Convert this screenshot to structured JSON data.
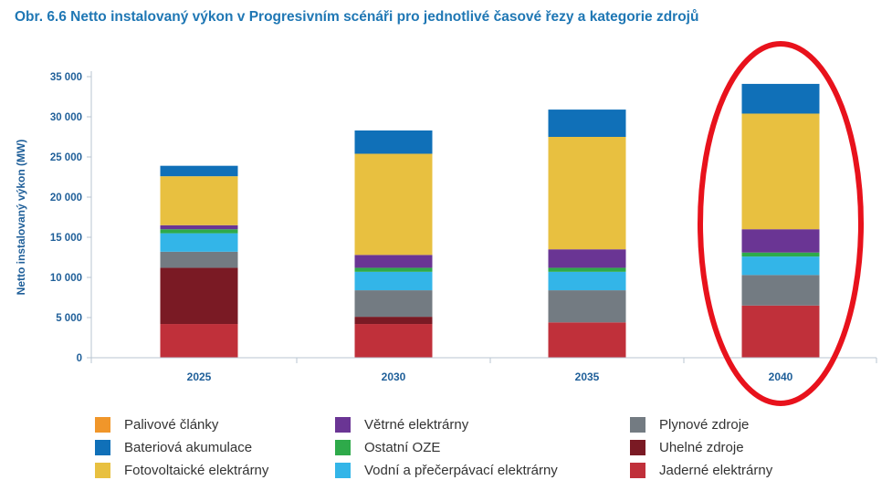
{
  "chart_data": {
    "type": "bar",
    "stacked": true,
    "title": "Obr. 6.6 Netto instalovaný výkon v Progresivním scénáři pro jednotlivé časové řezy a kategorie zdrojů",
    "xlabel": "",
    "ylabel": "Netto instalovaný výkon (MW)",
    "ylim": [
      0,
      35000
    ],
    "yticks": [
      0,
      5000,
      10000,
      15000,
      20000,
      25000,
      30000,
      35000
    ],
    "ytick_labels": [
      "0",
      "5 000",
      "10 000",
      "15 000",
      "20 000",
      "25 000",
      "30 000",
      "35 000"
    ],
    "categories": [
      "2025",
      "2030",
      "2035",
      "2040"
    ],
    "grid": false,
    "series": [
      {
        "name": "Jaderné elektrárny",
        "color": "#c0303a",
        "values": [
          4200,
          4200,
          4400,
          6500
        ]
      },
      {
        "name": "Uhelné zdroje",
        "color": "#7a1a24",
        "values": [
          7000,
          900,
          0,
          0
        ]
      },
      {
        "name": "Plynové zdroje",
        "color": "#737b82",
        "values": [
          2000,
          3300,
          4000,
          3800
        ]
      },
      {
        "name": "Vodní a přečerpávací elektrárny",
        "color": "#33b5e8",
        "values": [
          2300,
          2300,
          2300,
          2300
        ]
      },
      {
        "name": "Ostatní OZE",
        "color": "#2eaa4a",
        "values": [
          500,
          500,
          500,
          500
        ]
      },
      {
        "name": "Větrné elektrárny",
        "color": "#6a3594",
        "values": [
          500,
          1600,
          2300,
          2900
        ]
      },
      {
        "name": "Fotovoltaické elektrárny",
        "color": "#e8c040",
        "values": [
          6100,
          12600,
          14000,
          14400
        ]
      },
      {
        "name": "Bateriová akumulace",
        "color": "#1070b8",
        "values": [
          1300,
          2900,
          3400,
          3700
        ]
      },
      {
        "name": "Palivové články",
        "color": "#f0962a",
        "values": [
          0,
          0,
          0,
          0
        ]
      }
    ],
    "highlight": {
      "category": "2040",
      "shape": "ellipse",
      "color": "#e8121c"
    }
  },
  "legend": {
    "items": [
      {
        "label": "Palivové články",
        "color": "#f0962a"
      },
      {
        "label": "Větrné elektrárny",
        "color": "#6a3594"
      },
      {
        "label": "Plynové zdroje",
        "color": "#737b82"
      },
      {
        "label": "Bateriová akumulace",
        "color": "#1070b8"
      },
      {
        "label": "Ostatní OZE",
        "color": "#2eaa4a"
      },
      {
        "label": "Uhelné zdroje",
        "color": "#7a1a24"
      },
      {
        "label": "Fotovoltaické elektrárny",
        "color": "#e8c040"
      },
      {
        "label": "Vodní a přečerpávací elektrárny",
        "color": "#33b5e8"
      },
      {
        "label": "Jaderné elektrárny",
        "color": "#c0303a"
      }
    ]
  },
  "colors": {
    "title": "#1f77b4",
    "axis_text": "#1f5f99",
    "axis_line": "#b9c6d2"
  }
}
